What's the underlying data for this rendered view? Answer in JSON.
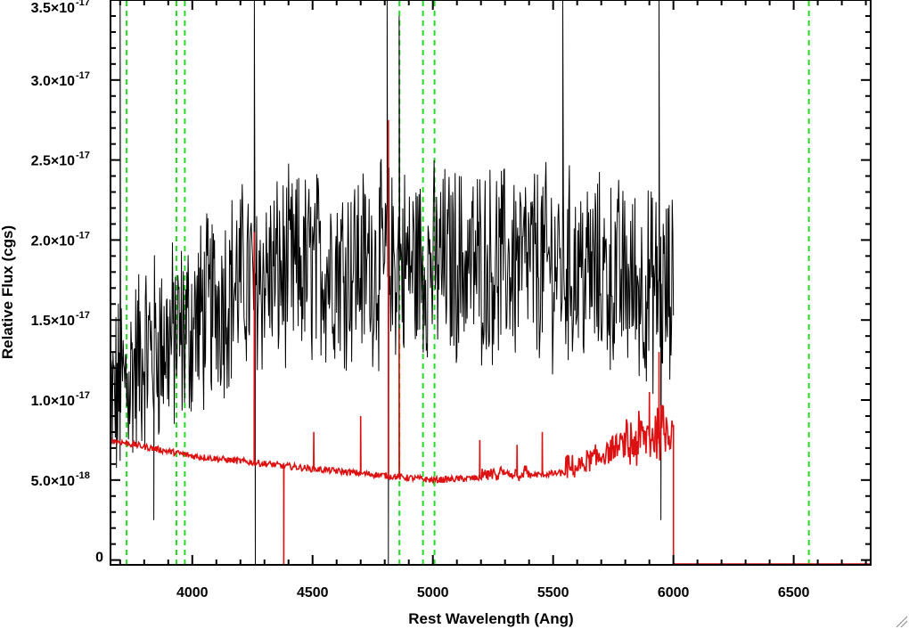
{
  "chart_data": {
    "type": "line",
    "xlabel": "Rest Wavelength (Ang)",
    "ylabel": "Relative Flux (cgs)",
    "xlim": [
      3660,
      6820
    ],
    "ylim": [
      -0.03,
      3.5
    ],
    "x_ticks": [
      {
        "value": 4000,
        "label": "4000"
      },
      {
        "value": 4500,
        "label": "4500"
      },
      {
        "value": 5000,
        "label": "5000"
      },
      {
        "value": 5500,
        "label": "5500"
      },
      {
        "value": 6000,
        "label": "6000"
      },
      {
        "value": 6500,
        "label": "6500"
      }
    ],
    "y_ticks": [
      {
        "value": 0.0,
        "mantissa": "0",
        "exponent": ""
      },
      {
        "value": 0.5,
        "mantissa": "5.0×10",
        "exponent": "-18"
      },
      {
        "value": 1.0,
        "mantissa": "1.0×10",
        "exponent": "-17"
      },
      {
        "value": 1.5,
        "mantissa": "1.5×10",
        "exponent": "-17"
      },
      {
        "value": 2.0,
        "mantissa": "2.0×10",
        "exponent": "-17"
      },
      {
        "value": 2.5,
        "mantissa": "2.5×10",
        "exponent": "-17"
      },
      {
        "value": 3.0,
        "mantissa": "3.0×10",
        "exponent": "-17"
      },
      {
        "value": 3.5,
        "mantissa": "3.5×10",
        "exponent": "-17"
      }
    ],
    "y_unit_note": "y values in units of 1e-17",
    "grid": false,
    "vertical_lines": {
      "color": "#22dd22",
      "style": "dashed",
      "x": [
        3727,
        3934,
        3969,
        4861,
        4959,
        5007,
        6563
      ]
    },
    "series": [
      {
        "color": "#000000",
        "x_range": [
          3660,
          6000
        ],
        "baseline_segments": [
          [
            3660,
            0.95
          ],
          [
            3800,
            1.3
          ],
          [
            3950,
            1.4
          ],
          [
            4200,
            1.75
          ],
          [
            4600,
            1.85
          ],
          [
            5000,
            1.85
          ],
          [
            5500,
            1.85
          ],
          [
            5800,
            1.75
          ],
          [
            6000,
            1.65
          ]
        ],
        "noise_amplitude": 0.55,
        "spikes": [
          {
            "x": 3700,
            "y": 3.5
          },
          {
            "x": 3840,
            "y": 0.25
          },
          {
            "x": 4258,
            "y": 3.5
          },
          {
            "x": 4262,
            "y": -0.03
          },
          {
            "x": 4810,
            "y": 3.5
          },
          {
            "x": 4815,
            "y": -0.03
          },
          {
            "x": 4860,
            "y": 3.4
          },
          {
            "x": 5540,
            "y": 3.5
          },
          {
            "x": 5940,
            "y": 3.5
          },
          {
            "x": 5948,
            "y": 0.25
          }
        ]
      },
      {
        "color": "#dd1111",
        "continuum": [
          [
            3660,
            0.75
          ],
          [
            4000,
            0.65
          ],
          [
            4500,
            0.57
          ],
          [
            5000,
            0.5
          ],
          [
            5300,
            0.52
          ],
          [
            5600,
            0.55
          ],
          [
            5800,
            0.7
          ],
          [
            6000,
            0.85
          ]
        ],
        "after_cutoff": {
          "x_start": 6000,
          "y": -0.03
        },
        "spikes": [
          {
            "x": 4258,
            "y": 2.05
          },
          {
            "x": 4380,
            "y": -0.03
          },
          {
            "x": 4505,
            "y": 0.8
          },
          {
            "x": 4700,
            "y": 0.9
          },
          {
            "x": 4815,
            "y": 2.75
          },
          {
            "x": 4860,
            "y": 1.45
          },
          {
            "x": 5195,
            "y": 0.75
          },
          {
            "x": 5350,
            "y": 0.72
          },
          {
            "x": 5455,
            "y": 0.8
          },
          {
            "x": 5900,
            "y": 1.05
          },
          {
            "x": 5940,
            "y": 1.3
          }
        ]
      }
    ]
  }
}
